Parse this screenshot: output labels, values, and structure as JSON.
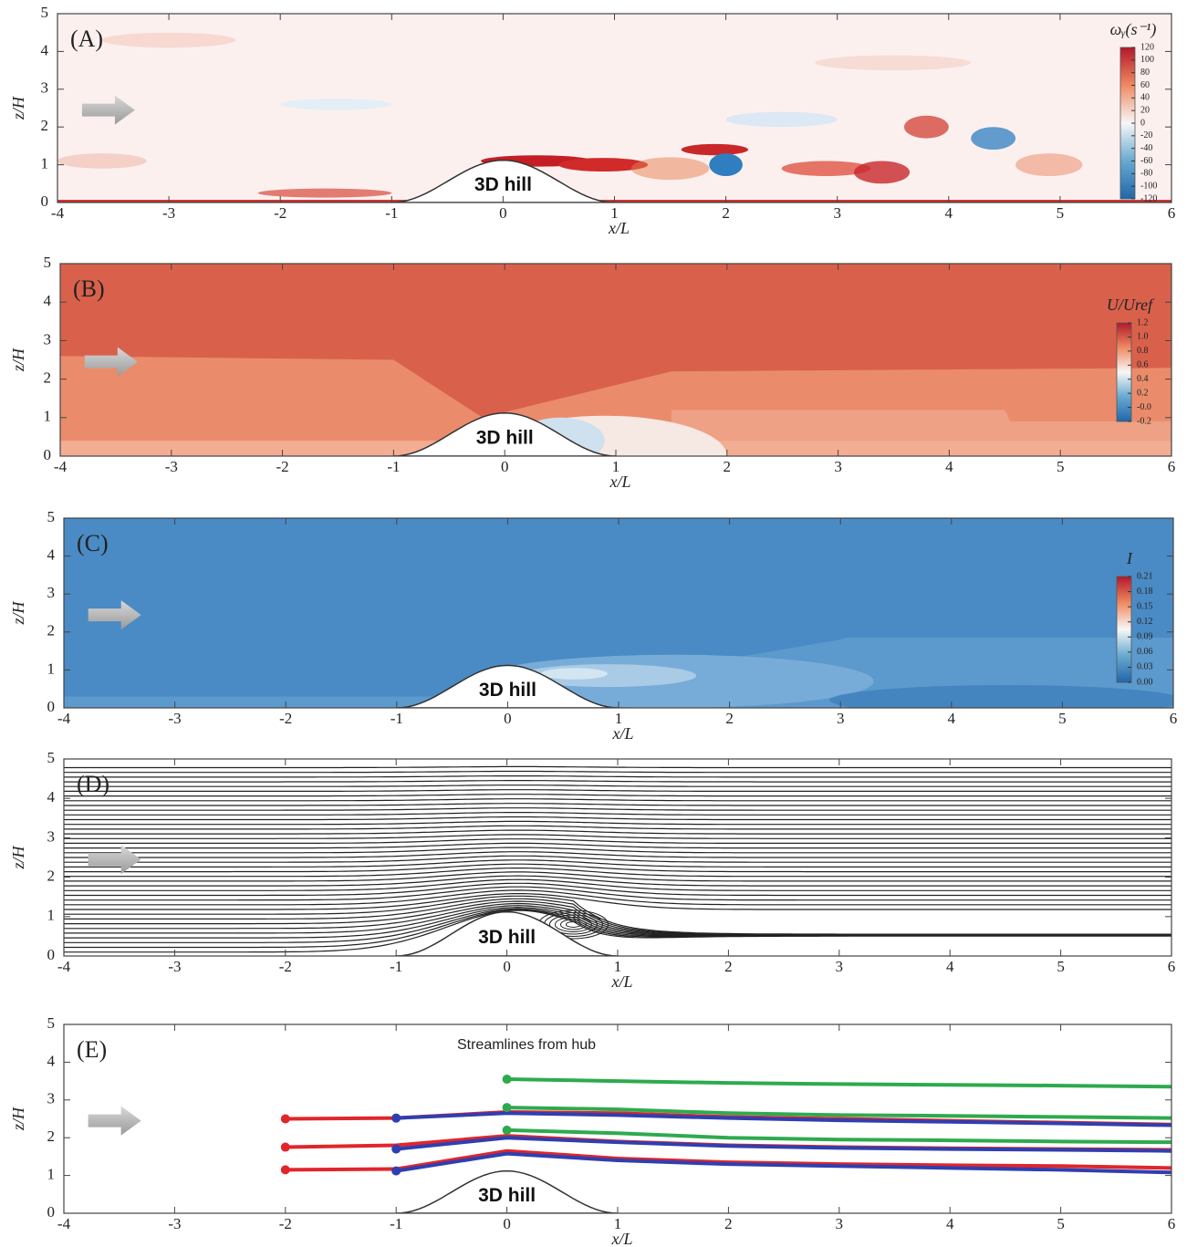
{
  "chart_data": [
    {
      "type": "contour",
      "panel_label": "(A)",
      "xlabel": "x/L",
      "ylabel": "z/H",
      "xlim": [
        -4,
        6
      ],
      "ylim": [
        0,
        5
      ],
      "xticks": [
        -4,
        -3,
        -2,
        -1,
        0,
        1,
        2,
        3,
        4,
        5,
        6
      ],
      "yticks": [
        0,
        1,
        2,
        3,
        4,
        5
      ],
      "hill_label": "3D hill",
      "colorbar": {
        "title": "ωᵧ(s⁻¹)",
        "ticks": [
          120,
          100,
          80,
          60,
          40,
          20,
          0,
          -20,
          -40,
          -60,
          -80,
          -100,
          -120
        ]
      }
    },
    {
      "type": "contour",
      "panel_label": "(B)",
      "xlabel": "x/L",
      "ylabel": "z/H",
      "xlim": [
        -4,
        6
      ],
      "ylim": [
        0,
        5
      ],
      "xticks": [
        -4,
        -3,
        -2,
        -1,
        0,
        1,
        2,
        3,
        4,
        5,
        6
      ],
      "yticks": [
        0,
        1,
        2,
        3,
        4,
        5
      ],
      "hill_label": "3D hill",
      "colorbar": {
        "title": "U/Uref",
        "ticks": [
          1.2,
          {
            "value": 1.0,
            "label": "1.0"
          },
          0.8,
          0.6,
          0.4,
          0.2,
          {
            "value": 0,
            "label": "-0.0"
          },
          -0.2
        ]
      }
    },
    {
      "type": "contour",
      "panel_label": "(C)",
      "xlabel": "x/L",
      "ylabel": "z/H",
      "xlim": [
        -4,
        6
      ],
      "ylim": [
        0,
        5
      ],
      "xticks": [
        -4,
        -3,
        -2,
        -1,
        0,
        1,
        2,
        3,
        4,
        5,
        6
      ],
      "yticks": [
        0,
        1,
        2,
        3,
        4,
        5
      ],
      "hill_label": "3D hill",
      "colorbar": {
        "title": "I",
        "ticks": [
          0.21,
          0.18,
          0.15,
          0.12,
          0.09,
          0.06,
          0.03,
          {
            "value": 0,
            "label": "0.00"
          }
        ]
      }
    },
    {
      "type": "streamline",
      "panel_label": "(D)",
      "xlabel": "x/L",
      "ylabel": "z/H",
      "xlim": [
        -4,
        6
      ],
      "ylim": [
        0,
        5
      ],
      "xticks": [
        -4,
        -3,
        -2,
        -1,
        0,
        1,
        2,
        3,
        4,
        5,
        6
      ],
      "yticks": [
        0,
        1,
        2,
        3,
        4,
        5
      ],
      "hill_label": "3D hill"
    },
    {
      "type": "line",
      "panel_label": "(E)",
      "xlabel": "x/L",
      "ylabel": "z/H",
      "xlim": [
        -4,
        6
      ],
      "ylim": [
        0,
        5
      ],
      "xticks": [
        -4,
        -3,
        -2,
        -1,
        0,
        1,
        2,
        3,
        4,
        5,
        6
      ],
      "yticks": [
        0,
        1,
        2,
        3,
        4,
        5
      ],
      "hill_label": "3D hill",
      "note": "Streamlines from hub",
      "series": [
        {
          "color": "#e0262b",
          "x": [
            -2,
            -1,
            0,
            1,
            2,
            3,
            4,
            5,
            6
          ],
          "values": [
            2.5,
            2.52,
            2.68,
            2.65,
            2.55,
            2.5,
            2.45,
            2.4,
            2.35
          ]
        },
        {
          "color": "#e0262b",
          "x": [
            -2,
            -1,
            0,
            1,
            2,
            3,
            4,
            5,
            6
          ],
          "values": [
            1.75,
            1.8,
            2.05,
            1.9,
            1.8,
            1.75,
            1.72,
            1.7,
            1.68
          ]
        },
        {
          "color": "#e0262b",
          "x": [
            -2,
            -1,
            0,
            1,
            2,
            3,
            4,
            5,
            6
          ],
          "values": [
            1.15,
            1.17,
            1.65,
            1.45,
            1.35,
            1.3,
            1.27,
            1.25,
            1.2
          ]
        },
        {
          "color": "#2f3fb0",
          "x": [
            -1,
            0,
            1,
            2,
            3,
            4,
            5,
            6
          ],
          "values": [
            2.52,
            2.65,
            2.6,
            2.52,
            2.46,
            2.42,
            2.38,
            2.33
          ]
        },
        {
          "color": "#2f3fb0",
          "x": [
            -1,
            0,
            1,
            2,
            3,
            4,
            5,
            6
          ],
          "values": [
            1.7,
            2.0,
            1.88,
            1.78,
            1.73,
            1.7,
            1.68,
            1.65
          ]
        },
        {
          "color": "#2f3fb0",
          "x": [
            -1,
            0,
            1,
            2,
            3,
            4,
            5,
            6
          ],
          "values": [
            1.12,
            1.58,
            1.4,
            1.3,
            1.25,
            1.2,
            1.15,
            1.08
          ]
        },
        {
          "color": "#2eaa4e",
          "x": [
            0,
            1,
            2,
            3,
            4,
            5,
            6
          ],
          "values": [
            3.55,
            3.5,
            3.45,
            3.42,
            3.4,
            3.38,
            3.35
          ]
        },
        {
          "color": "#2eaa4e",
          "x": [
            0,
            1,
            2,
            3,
            4,
            5,
            6
          ],
          "values": [
            2.8,
            2.75,
            2.65,
            2.6,
            2.58,
            2.55,
            2.52
          ]
        },
        {
          "color": "#2eaa4e",
          "x": [
            0,
            1,
            2,
            3,
            4,
            5,
            6
          ],
          "values": [
            2.2,
            2.12,
            2.0,
            1.95,
            1.93,
            1.9,
            1.88
          ]
        }
      ]
    }
  ]
}
